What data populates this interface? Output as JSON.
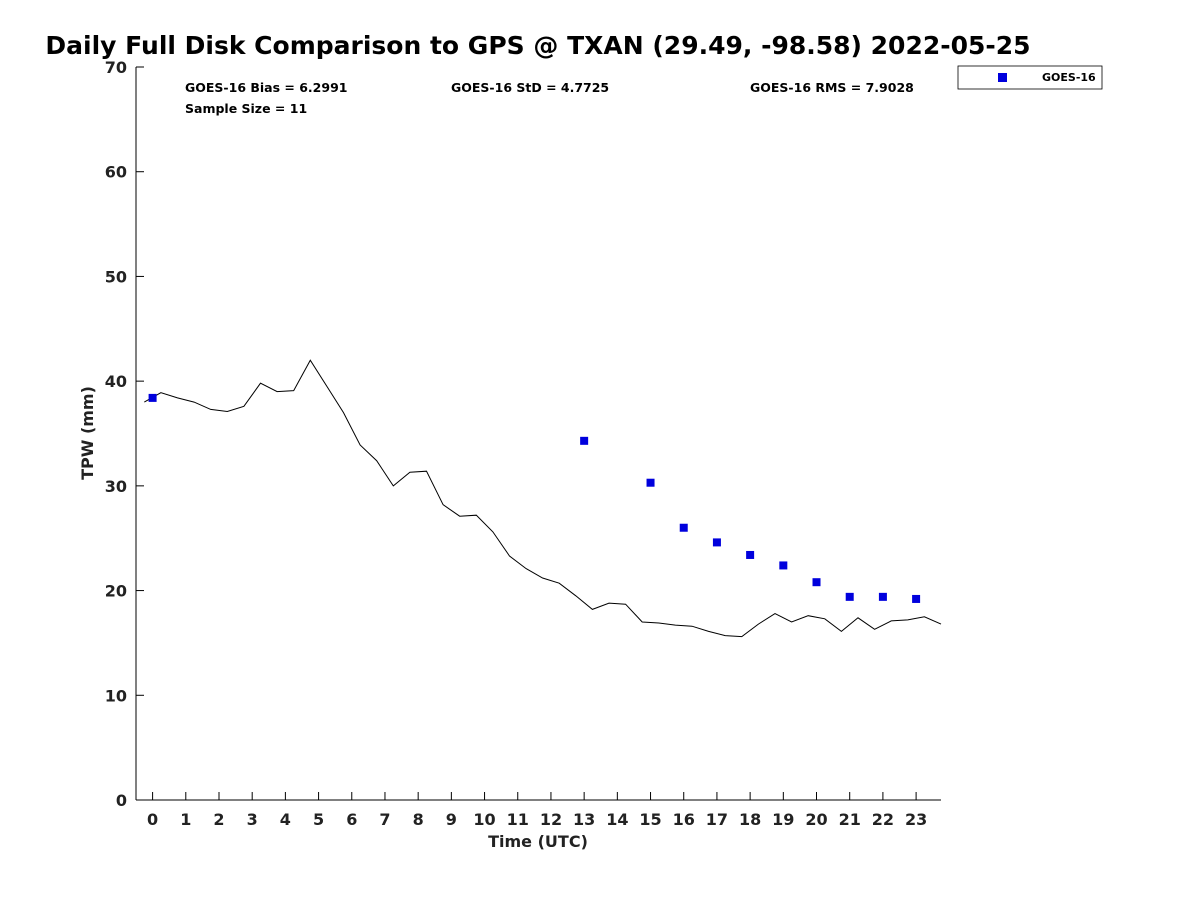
{
  "chart_data": {
    "type": "scatter",
    "title": "Daily Full Disk Comparison to GPS @ TXAN (29.49, -98.58) 2022-05-25",
    "xlabel": "Time (UTC)",
    "ylabel": "TPW (mm)",
    "xlim": [
      -0.5,
      23.75
    ],
    "ylim": [
      0,
      70
    ],
    "x_ticks": [
      "0",
      "1",
      "2",
      "3",
      "4",
      "5",
      "6",
      "7",
      "8",
      "9",
      "10",
      "11",
      "12",
      "13",
      "14",
      "15",
      "16",
      "17",
      "18",
      "19",
      "20",
      "21",
      "22",
      "23"
    ],
    "y_ticks": [
      "0",
      "10",
      "20",
      "30",
      "40",
      "50",
      "60",
      "70"
    ],
    "grid": false,
    "legend_position": "top-right",
    "stats": {
      "bias": "GOES-16 Bias = 6.2991",
      "std": "GOES-16 StD = 4.7725",
      "rms": "GOES-16 RMS = 7.9028",
      "sample": "Sample Size = 11"
    },
    "series": [
      {
        "name": "GOES-16",
        "type": "scatter",
        "color": "#0000dd",
        "x": [
          0,
          13,
          15,
          16,
          17,
          18,
          19,
          20,
          21,
          22,
          23
        ],
        "y": [
          38.4,
          34.3,
          30.3,
          26.0,
          24.6,
          23.4,
          22.4,
          20.8,
          19.4,
          19.4,
          19.2
        ]
      },
      {
        "type": "line",
        "color": "#000000",
        "x": [
          -0.25,
          0.25,
          0.75,
          1.25,
          1.75,
          2.25,
          2.75,
          3.25,
          3.75,
          4.25,
          4.75,
          5.25,
          5.75,
          6.25,
          6.75,
          7.25,
          7.75,
          8.25,
          8.75,
          9.25,
          9.75,
          10.25,
          10.75,
          11.25,
          11.75,
          12.25,
          12.75,
          13.25,
          13.75,
          14.25,
          14.75,
          15.25,
          15.75,
          16.25,
          16.75,
          17.25,
          17.75,
          18.25,
          18.75,
          19.25,
          19.75,
          20.25,
          20.75,
          21.25,
          21.75,
          22.25,
          22.75,
          23.25,
          23.75
        ],
        "y": [
          38.0,
          38.9,
          38.4,
          38.0,
          37.3,
          37.1,
          37.6,
          39.8,
          39.0,
          39.1,
          42.0,
          39.5,
          37.0,
          33.9,
          32.4,
          30.0,
          31.3,
          31.4,
          28.2,
          27.1,
          27.2,
          25.6,
          23.3,
          22.1,
          21.2,
          20.7,
          19.5,
          18.2,
          18.8,
          18.7,
          17.0,
          16.9,
          16.7,
          16.6,
          16.1,
          15.7,
          15.6,
          16.8,
          17.8,
          17.0,
          17.6,
          17.3,
          16.1,
          17.4,
          16.3,
          17.1,
          17.2,
          17.5,
          16.8
        ]
      }
    ]
  }
}
